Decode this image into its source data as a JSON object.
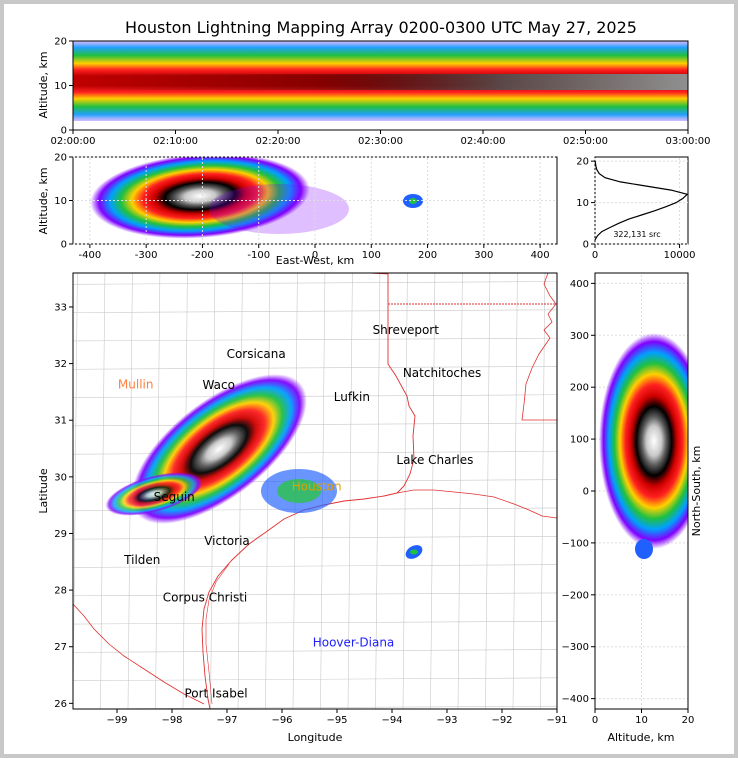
{
  "title": "Houston Lightning Mapping Array 0200-0300 UTC May 27, 2025",
  "chart_data": [
    {
      "panel": "altitude-time",
      "type": "heatmap",
      "ylabel": "Altitude, km",
      "xlabel": "",
      "xlim": [
        "02:00:00",
        "03:00:00"
      ],
      "ylim": [
        0,
        20
      ],
      "xticks": [
        "02:00:00",
        "02:10:00",
        "02:20:00",
        "02:30:00",
        "02:40:00",
        "02:50:00",
        "03:00:00"
      ],
      "yticks": [
        0,
        10,
        20
      ],
      "note": "continuous dense source band centered near 10-12 km altitude throughout the hour"
    },
    {
      "panel": "altitude-eastwest",
      "type": "heatmap",
      "xlabel": "East-West, km",
      "ylabel": "Altitude, km",
      "xlim": [
        -430,
        430
      ],
      "ylim": [
        0,
        20
      ],
      "xticks": [
        -400,
        -300,
        -200,
        -100,
        0,
        100,
        200,
        300,
        400
      ],
      "yticks": [
        0,
        10,
        20
      ]
    },
    {
      "panel": "altitude-histogram",
      "type": "line",
      "xlim": [
        0,
        11000
      ],
      "ylim": [
        0,
        21
      ],
      "xticks": [
        0,
        10000
      ],
      "yticks": [
        0,
        10,
        20
      ],
      "annotation": "322,131 src",
      "altitude": [
        1,
        2,
        3,
        4,
        5,
        6,
        7,
        8,
        9,
        10,
        11,
        12,
        13,
        14,
        15,
        16,
        17,
        18,
        19,
        20
      ],
      "sources": [
        0,
        300,
        800,
        1800,
        2800,
        4000,
        5500,
        7000,
        8400,
        9600,
        10400,
        10900,
        9000,
        6000,
        3000,
        1200,
        500,
        200,
        80,
        20
      ]
    },
    {
      "panel": "plan-view",
      "type": "heatmap",
      "xlabel": "Longitude",
      "ylabel": "Latitude",
      "xlim": [
        -99.8,
        -91
      ],
      "ylim": [
        25.9,
        33.6
      ],
      "xticks": [
        -99,
        -98,
        -97,
        -96,
        -95,
        -94,
        -93,
        -92,
        -91
      ],
      "yticks": [
        26,
        27,
        28,
        29,
        30,
        31,
        32,
        33
      ],
      "map_labels": [
        {
          "name": "Shreveport",
          "lon": -93.75,
          "lat": 32.52,
          "color": "#000000"
        },
        {
          "name": "Corsicana",
          "lon": -96.47,
          "lat": 32.1,
          "color": "#000000"
        },
        {
          "name": "Mullin",
          "lon": -98.66,
          "lat": 31.56,
          "color": "#ff8040"
        },
        {
          "name": "Natchitoches",
          "lon": -93.09,
          "lat": 31.76,
          "color": "#000000"
        },
        {
          "name": "Lufkin",
          "lon": -94.73,
          "lat": 31.34,
          "color": "#000000"
        },
        {
          "name": "Waco",
          "lon": -97.15,
          "lat": 31.55,
          "color": "#000000"
        },
        {
          "name": "Lake Charles",
          "lon": -93.22,
          "lat": 30.23,
          "color": "#000000"
        },
        {
          "name": "Houston",
          "lon": -95.37,
          "lat": 29.76,
          "color": "#e0a000"
        },
        {
          "name": "Seguin",
          "lon": -97.96,
          "lat": 29.57,
          "color": "#000000"
        },
        {
          "name": "Victoria",
          "lon": -97.0,
          "lat": 28.8,
          "color": "#000000"
        },
        {
          "name": "Tilden",
          "lon": -98.54,
          "lat": 28.46,
          "color": "#000000"
        },
        {
          "name": "Corpus Christi",
          "lon": -97.4,
          "lat": 27.8,
          "color": "#000000"
        },
        {
          "name": "Hoover-Diana",
          "lon": -94.7,
          "lat": 27.0,
          "color": "#2020ff"
        },
        {
          "name": "Port Isabel",
          "lon": -97.2,
          "lat": 26.1,
          "color": "#000000"
        }
      ]
    },
    {
      "panel": "northsouth-altitude",
      "type": "heatmap",
      "xlabel": "Altitude, km",
      "ylabel": "North-South, km",
      "xlim": [
        0,
        20
      ],
      "ylim": [
        -420,
        420
      ],
      "xticks": [
        0,
        10,
        20
      ],
      "yticks": [
        -400,
        -300,
        -200,
        -100,
        0,
        100,
        200,
        300,
        400
      ]
    }
  ]
}
